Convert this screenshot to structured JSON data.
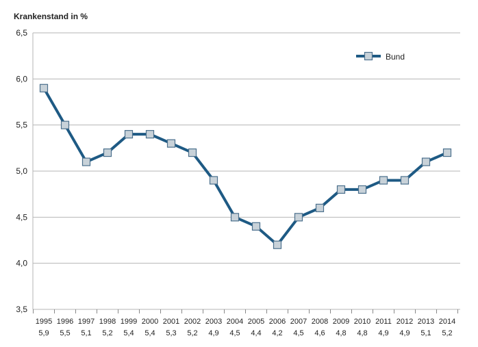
{
  "chart_data": {
    "type": "line",
    "ylabel": "Krankenstand in %",
    "categories": [
      "1995",
      "1996",
      "1997",
      "1998",
      "1999",
      "2000",
      "2001",
      "2002",
      "2003",
      "2004",
      "2005",
      "2006",
      "2007",
      "2008",
      "2009",
      "2010",
      "2011",
      "2012",
      "2013",
      "2014"
    ],
    "value_labels": [
      "5,9",
      "5,5",
      "5,1",
      "5,2",
      "5,4",
      "5,4",
      "5,3",
      "5,2",
      "4,9",
      "4,5",
      "4,4",
      "4,2",
      "4,5",
      "4,6",
      "4,8",
      "4,8",
      "4,9",
      "4,9",
      "5,1",
      "5,2"
    ],
    "series": [
      {
        "name": "Bund",
        "values": [
          5.9,
          5.5,
          5.1,
          5.2,
          5.4,
          5.4,
          5.3,
          5.2,
          4.9,
          4.5,
          4.4,
          4.2,
          4.5,
          4.6,
          4.8,
          4.8,
          4.9,
          4.9,
          5.1,
          5.2
        ]
      }
    ],
    "ylim": [
      3.5,
      6.5
    ],
    "yticks": [
      3.5,
      4.0,
      4.5,
      5.0,
      5.5,
      6.0,
      6.5
    ],
    "ytick_labels": [
      "3,5",
      "4,0",
      "4,5",
      "5,0",
      "5,5",
      "6,0",
      "6,5"
    ],
    "grid": true,
    "legend": "top-right",
    "colors": {
      "line": "#1e5a84",
      "marker_fill": "#c8d2d9",
      "marker_stroke": "#4a6f8c",
      "grid": "#b5b5b5"
    }
  }
}
